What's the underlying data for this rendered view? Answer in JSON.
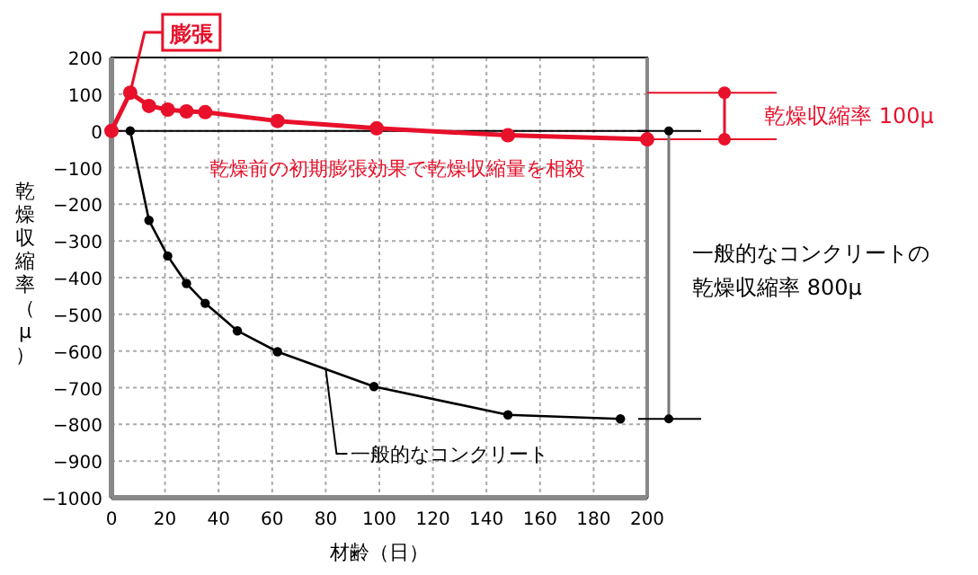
{
  "chart_data": {
    "type": "line",
    "xlabel": "材齢（日）",
    "ylabel": "乾燥収縮率（μ）",
    "xlim": [
      0,
      200
    ],
    "xticks": [
      0,
      20,
      40,
      60,
      80,
      100,
      120,
      140,
      160,
      180,
      200
    ],
    "ylim": [
      -1000,
      200
    ],
    "yticks": [
      -1000,
      -900,
      -800,
      -700,
      -600,
      -500,
      -400,
      -300,
      -200,
      -100,
      0,
      100,
      200
    ],
    "grid": true,
    "marker": "circle",
    "line_style": "solid",
    "series": [
      {
        "color": "#e8102a",
        "x": [
          0,
          7,
          14,
          21,
          28,
          35,
          62,
          99,
          148,
          200
        ],
        "values": [
          0,
          104,
          68,
          58,
          53,
          51,
          27,
          7,
          -12,
          -23
        ]
      },
      {
        "name": "一般的なコンクリート",
        "color": "#000000",
        "x": [
          7,
          14,
          21,
          28,
          35,
          47,
          62,
          98,
          148,
          190
        ],
        "values": [
          0,
          -244,
          -341,
          -416,
          -470,
          -545,
          -602,
          -697,
          -774,
          -785
        ]
      }
    ],
    "annotations": [
      {
        "text": "膨張",
        "x": 7,
        "y": 104
      },
      "乾燥前の初期膨張効果で乾燥収縮量を相殺",
      "乾燥収縮率 100μ",
      "一般的なコンクリートの乾燥収縮率 800μ"
    ]
  }
}
